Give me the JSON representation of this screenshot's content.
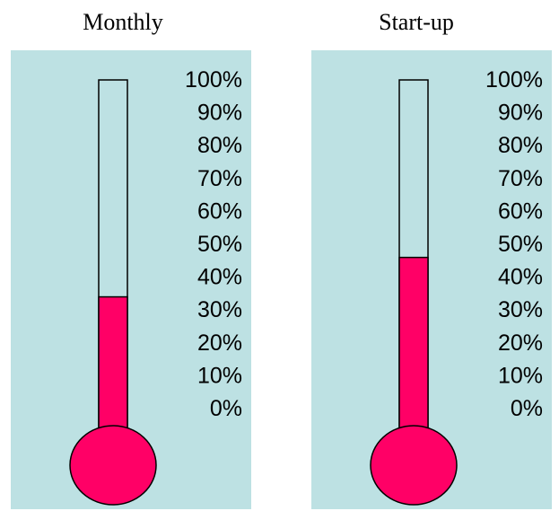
{
  "colors": {
    "panel": "#bde1e3",
    "fill": "#ff0066",
    "outline": "#000000",
    "text": "#000000"
  },
  "scale_labels": [
    "100%",
    "90%",
    "80%",
    "70%",
    "60%",
    "50%",
    "40%",
    "30%",
    "20%",
    "10%",
    "0%"
  ],
  "chart_data": [
    {
      "type": "thermometer",
      "title": "Monthly",
      "value": 34,
      "ylim": [
        0,
        100
      ],
      "unit": "%"
    },
    {
      "type": "thermometer",
      "title": "Start-up",
      "value": 46,
      "ylim": [
        0,
        100
      ],
      "unit": "%"
    }
  ]
}
